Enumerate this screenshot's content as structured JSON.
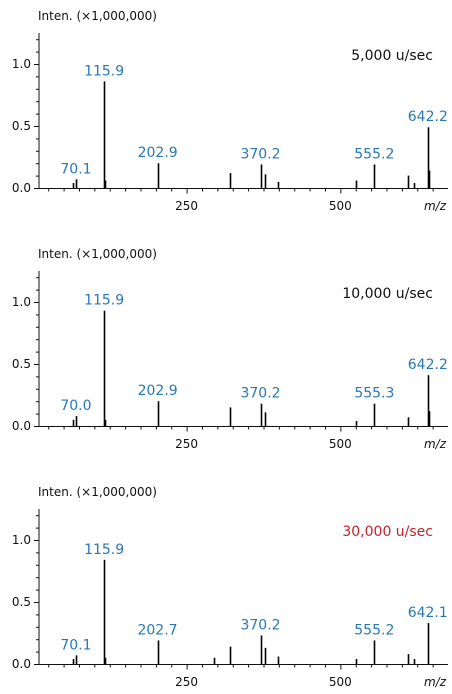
{
  "chart_data": [
    {
      "type": "bar",
      "ylabel": "Inten. (×1,000,000)",
      "xlabel": "m/z",
      "scan_speed": "5,000 u/sec",
      "scan_speed_color": "#111111",
      "xlim": [
        10,
        675
      ],
      "ylim": [
        0,
        1.25
      ],
      "xticks": [
        250,
        500
      ],
      "xtick_labels": [
        "250",
        "500"
      ],
      "yticks": [
        0.0,
        0.5,
        1.0
      ],
      "ytick_labels": [
        "0.0",
        "0.5",
        "1.0"
      ],
      "peaks": [
        {
          "x": 66,
          "y": 0.04
        },
        {
          "x": 70.1,
          "y": 0.07
        },
        {
          "x": 115.9,
          "y": 0.86
        },
        {
          "x": 118,
          "y": 0.06
        },
        {
          "x": 202.9,
          "y": 0.2
        },
        {
          "x": 321,
          "y": 0.12
        },
        {
          "x": 370.2,
          "y": 0.19
        },
        {
          "x": 378,
          "y": 0.11
        },
        {
          "x": 398,
          "y": 0.05
        },
        {
          "x": 525,
          "y": 0.06
        },
        {
          "x": 555.2,
          "y": 0.19
        },
        {
          "x": 610,
          "y": 0.1
        },
        {
          "x": 620,
          "y": 0.04
        },
        {
          "x": 642.2,
          "y": 0.49
        },
        {
          "x": 644,
          "y": 0.14
        }
      ],
      "peak_labels": [
        {
          "text": "70.1",
          "x": 70.1,
          "y": 0.07
        },
        {
          "text": "115.9",
          "x": 115.9,
          "y": 0.86
        },
        {
          "text": "202.9",
          "x": 202.9,
          "y": 0.2
        },
        {
          "text": "370.2",
          "x": 370.2,
          "y": 0.19
        },
        {
          "text": "555.2",
          "x": 555.2,
          "y": 0.19
        },
        {
          "text": "642.2",
          "x": 642.2,
          "y": 0.49
        }
      ]
    },
    {
      "type": "bar",
      "ylabel": "Inten. (×1,000,000)",
      "xlabel": "m/z",
      "scan_speed": "10,000 u/sec",
      "scan_speed_color": "#111111",
      "xlim": [
        10,
        675
      ],
      "ylim": [
        0,
        1.25
      ],
      "xticks": [
        250,
        500
      ],
      "xtick_labels": [
        "250",
        "500"
      ],
      "yticks": [
        0.0,
        0.5,
        1.0
      ],
      "ytick_labels": [
        "0.0",
        "0.5",
        "1.0"
      ],
      "peaks": [
        {
          "x": 66,
          "y": 0.05
        },
        {
          "x": 70.0,
          "y": 0.08
        },
        {
          "x": 115.9,
          "y": 0.93
        },
        {
          "x": 118,
          "y": 0.05
        },
        {
          "x": 202.9,
          "y": 0.2
        },
        {
          "x": 321,
          "y": 0.15
        },
        {
          "x": 370.2,
          "y": 0.18
        },
        {
          "x": 378,
          "y": 0.11
        },
        {
          "x": 525,
          "y": 0.04
        },
        {
          "x": 555.3,
          "y": 0.18
        },
        {
          "x": 610,
          "y": 0.07
        },
        {
          "x": 642.2,
          "y": 0.41
        },
        {
          "x": 644,
          "y": 0.12
        }
      ],
      "peak_labels": [
        {
          "text": "70.0",
          "x": 70.0,
          "y": 0.08
        },
        {
          "text": "115.9",
          "x": 115.9,
          "y": 0.93
        },
        {
          "text": "202.9",
          "x": 202.9,
          "y": 0.2
        },
        {
          "text": "370.2",
          "x": 370.2,
          "y": 0.18
        },
        {
          "text": "555.3",
          "x": 555.3,
          "y": 0.18
        },
        {
          "text": "642.2",
          "x": 642.2,
          "y": 0.41
        }
      ]
    },
    {
      "type": "bar",
      "ylabel": "Inten. (×1,000,000)",
      "xlabel": "m/z",
      "scan_speed": "30,000 u/sec",
      "scan_speed_color": "#c0222e",
      "xlim": [
        10,
        675
      ],
      "ylim": [
        0,
        1.25
      ],
      "xticks": [
        250,
        500
      ],
      "xtick_labels": [
        "250",
        "500"
      ],
      "yticks": [
        0.0,
        0.5,
        1.0
      ],
      "ytick_labels": [
        "0.0",
        "0.5",
        "1.0"
      ],
      "peaks": [
        {
          "x": 66,
          "y": 0.04
        },
        {
          "x": 70.1,
          "y": 0.07
        },
        {
          "x": 115.9,
          "y": 0.84
        },
        {
          "x": 118,
          "y": 0.05
        },
        {
          "x": 202.7,
          "y": 0.19
        },
        {
          "x": 295,
          "y": 0.05
        },
        {
          "x": 321,
          "y": 0.14
        },
        {
          "x": 370.2,
          "y": 0.23
        },
        {
          "x": 378,
          "y": 0.13
        },
        {
          "x": 398,
          "y": 0.06
        },
        {
          "x": 525,
          "y": 0.04
        },
        {
          "x": 555.2,
          "y": 0.19
        },
        {
          "x": 610,
          "y": 0.08
        },
        {
          "x": 620,
          "y": 0.04
        },
        {
          "x": 642.1,
          "y": 0.33
        }
      ],
      "peak_labels": [
        {
          "text": "70.1",
          "x": 70.1,
          "y": 0.07
        },
        {
          "text": "115.9",
          "x": 115.9,
          "y": 0.84
        },
        {
          "text": "202.7",
          "x": 202.7,
          "y": 0.19
        },
        {
          "text": "370.2",
          "x": 370.2,
          "y": 0.23
        },
        {
          "text": "555.2",
          "x": 555.2,
          "y": 0.19
        },
        {
          "text": "642.1",
          "x": 642.1,
          "y": 0.33
        }
      ]
    }
  ],
  "colors": {
    "peak_label": "#2878b8",
    "axis": "#111111",
    "text": "#111111"
  }
}
